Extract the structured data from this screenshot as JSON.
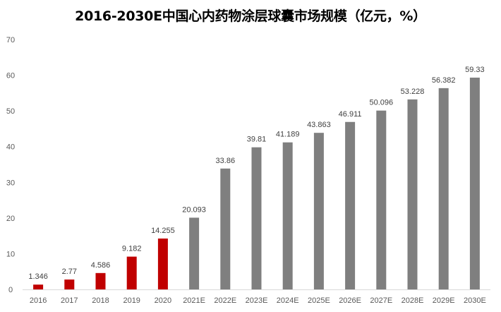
{
  "chart_data": {
    "type": "bar",
    "title": "2016-2030E中国心内药物涂层球囊市场规模（亿元，%）",
    "xlabel": "",
    "ylabel": "",
    "ylim": [
      0,
      70
    ],
    "yticks": [
      0,
      10,
      20,
      30,
      40,
      50,
      60,
      70
    ],
    "grid": false,
    "legend": "none",
    "categories": [
      "2016",
      "2017",
      "2018",
      "2019",
      "2020",
      "2021E",
      "2022E",
      "2023E",
      "2024E",
      "2025E",
      "2026E",
      "2027E",
      "2028E",
      "2029E",
      "2030E"
    ],
    "values": [
      1.346,
      2.77,
      4.586,
      9.182,
      14.255,
      20.093,
      33.86,
      39.81,
      41.189,
      43.863,
      46.911,
      50.096,
      53.228,
      56.382,
      59.33
    ],
    "data_labels": [
      "1.346",
      "2.77",
      "4.586",
      "9.182",
      "14.255",
      "20.093",
      "33.86",
      "39.81",
      "41.189",
      "43.863",
      "46.911",
      "50.096",
      "53.228",
      "56.382",
      "59.33"
    ],
    "bar_colors": [
      "#c00000",
      "#c00000",
      "#c00000",
      "#c00000",
      "#c00000",
      "#7f7f7f",
      "#7f7f7f",
      "#7f7f7f",
      "#7f7f7f",
      "#7f7f7f",
      "#7f7f7f",
      "#7f7f7f",
      "#7f7f7f",
      "#7f7f7f",
      "#7f7f7f"
    ],
    "colors": {
      "actual": "#c00000",
      "forecast": "#7f7f7f",
      "axis": "#d9d9d9"
    }
  }
}
